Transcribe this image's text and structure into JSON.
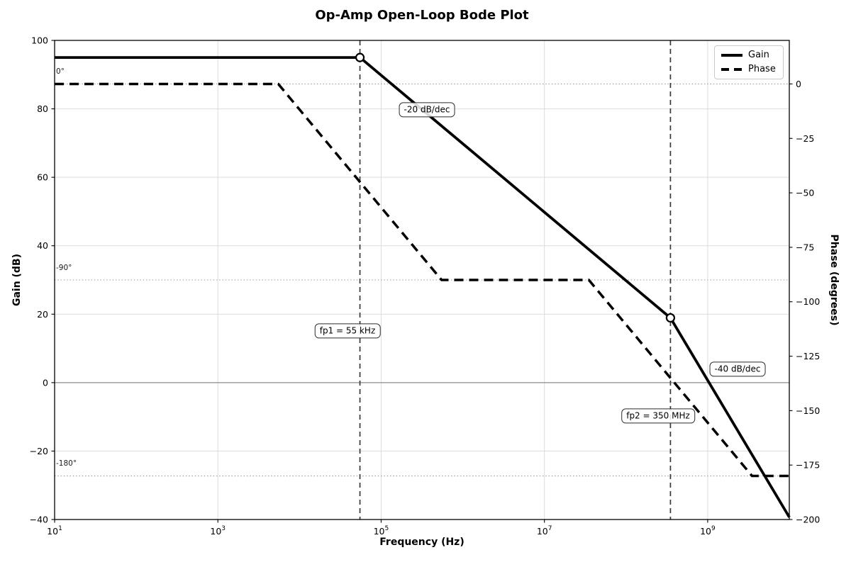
{
  "chart_data": {
    "type": "line",
    "title": "Op-Amp Open-Loop Bode Plot",
    "xlabel": "Frequency (Hz)",
    "ylabel_left": "Gain (dB)",
    "ylabel_right": "Phase (degrees)",
    "x_scale": "log",
    "xlim": [
      10,
      10000000000
    ],
    "ylim_gain": [
      -40,
      100
    ],
    "ylim_phase": [
      -200,
      20
    ],
    "grid": true,
    "legend_position": "upper right",
    "x_ticks": [
      {
        "base": "10",
        "exp": "1",
        "log": 1
      },
      {
        "base": "10",
        "exp": "3",
        "log": 3
      },
      {
        "base": "10",
        "exp": "5",
        "log": 5
      },
      {
        "base": "10",
        "exp": "7",
        "log": 7
      },
      {
        "base": "10",
        "exp": "9",
        "log": 9
      }
    ],
    "gain_ticks": [
      {
        "v": 100,
        "label": "100"
      },
      {
        "v": 80,
        "label": "80"
      },
      {
        "v": 60,
        "label": "60"
      },
      {
        "v": 40,
        "label": "40"
      },
      {
        "v": 20,
        "label": "20"
      },
      {
        "v": 0,
        "label": "0"
      },
      {
        "v": -20,
        "label": "−20"
      },
      {
        "v": -40,
        "label": "−40"
      }
    ],
    "phase_ticks": [
      {
        "v": 0,
        "label": "0"
      },
      {
        "v": -25,
        "label": "−25"
      },
      {
        "v": -50,
        "label": "−50"
      },
      {
        "v": -75,
        "label": "−75"
      },
      {
        "v": -100,
        "label": "−100"
      },
      {
        "v": -125,
        "label": "−125"
      },
      {
        "v": -150,
        "label": "−150"
      },
      {
        "v": -175,
        "label": "−175"
      },
      {
        "v": -200,
        "label": "−200"
      }
    ],
    "series": [
      {
        "name": "Gain",
        "axis": "gain",
        "style": "solid",
        "points": [
          [
            10,
            95
          ],
          [
            55000,
            95
          ],
          [
            350000000,
            18.93
          ],
          [
            10000000000,
            -39.31
          ]
        ]
      },
      {
        "name": "Phase",
        "axis": "phase",
        "style": "dashed",
        "points": [
          [
            10,
            0
          ],
          [
            5500,
            0
          ],
          [
            550000,
            -90
          ],
          [
            35000000,
            -90
          ],
          [
            3500000000,
            -180
          ],
          [
            10000000000,
            -180
          ]
        ]
      }
    ],
    "markers": [
      {
        "f": 55000,
        "gain": 95
      },
      {
        "f": 350000000,
        "gain": 18.93
      }
    ],
    "pole_lines": [
      {
        "f": 55000
      },
      {
        "f": 350000000
      }
    ],
    "pole_labels": [
      {
        "label": "fp1 = 55 kHz",
        "x": 490,
        "y": 467
      },
      {
        "label": "fp2 = 350 MHz",
        "x": 928,
        "y": 587
      }
    ],
    "slope_labels": [
      {
        "label": "-20 dB/dec",
        "x": 602,
        "y": 155
      },
      {
        "label": "-40 dB/dec",
        "x": 1040,
        "y": 521
      }
    ],
    "phase_ref_lines": [
      {
        "deg": 0,
        "label": "0°",
        "label_y": 101
      },
      {
        "deg": -90,
        "label": "-90°",
        "label_y": 378
      },
      {
        "deg": -180,
        "label": "-180°",
        "label_y": 654
      }
    ],
    "legend": [
      {
        "label": "Gain",
        "style": "solid"
      },
      {
        "label": "Phase",
        "style": "dashed"
      }
    ],
    "colors": {
      "line": "#000000",
      "grid": "#dcdcdc",
      "zero_db_line": "#8a8a8a",
      "dotted_ref": "#9a9a9a",
      "pole_line": "#3a3a3a",
      "spine": "#000000"
    }
  }
}
